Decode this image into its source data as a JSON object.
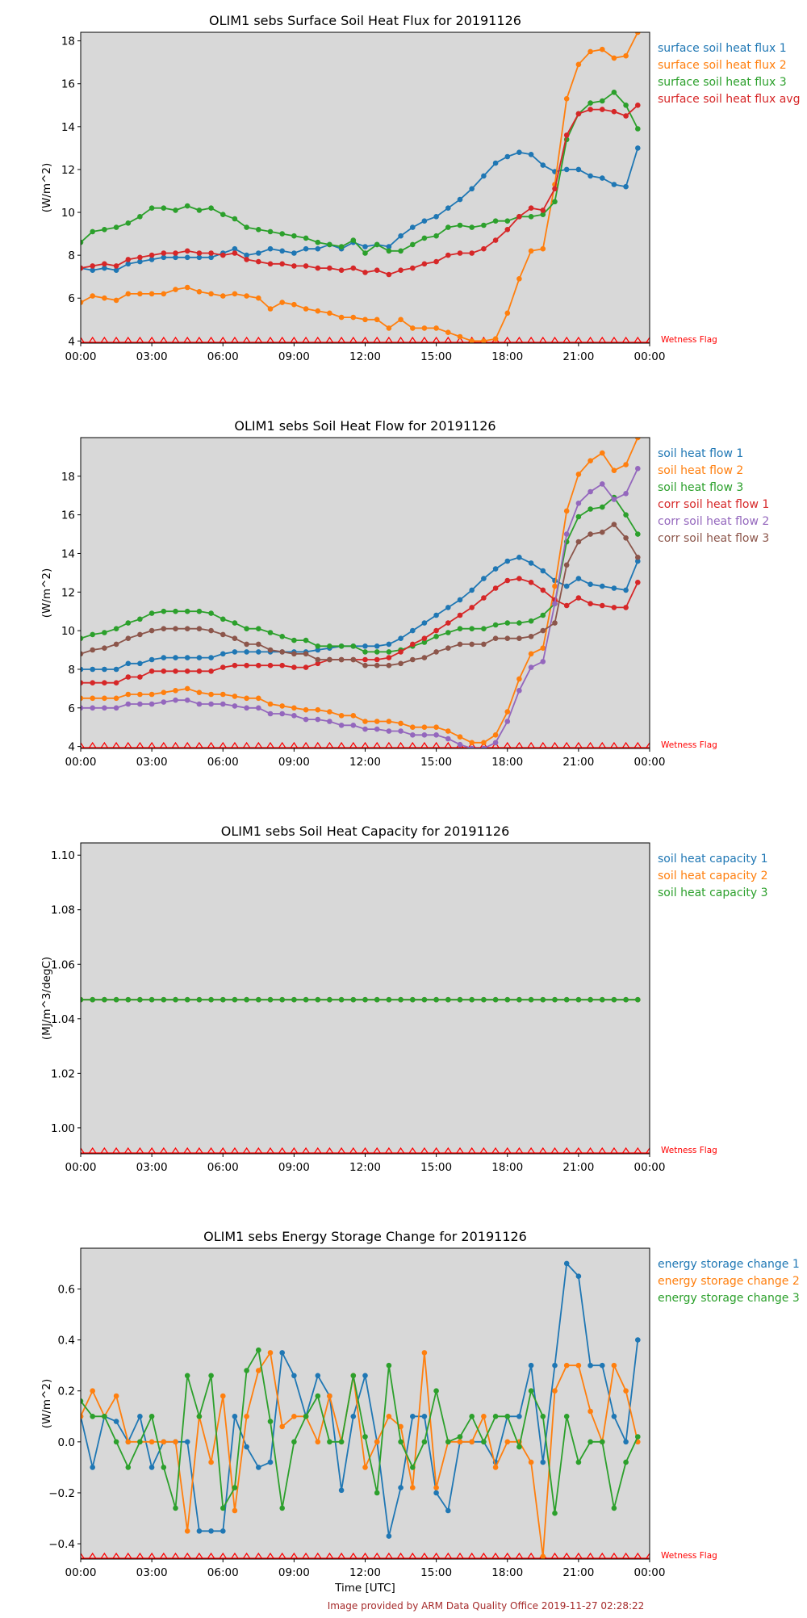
{
  "x_ticks": [
    "00:00",
    "03:00",
    "06:00",
    "09:00",
    "12:00",
    "15:00",
    "18:00",
    "21:00",
    "00:00"
  ],
  "wetness_flag_label": "Wetness Flag",
  "footer": "Image provided by ARM Data Quality Office 2019-11-27 02:28:22",
  "colors": {
    "c1": "#1f77b4",
    "c2": "#ff7f0e",
    "c3": "#2ca02c",
    "c4": "#d62728",
    "c5": "#9467bd",
    "c6": "#8c564b",
    "plot_bg": "#d8d8d8",
    "flag": "#ff0000",
    "footer": "#a52a2a"
  },
  "chart_data": [
    {
      "type": "line",
      "title": "OLIM1 sebs Surface Soil Heat Flux for 20191126",
      "ylabel": "(W/m^2)",
      "xlabel": "",
      "x_unit": "hours UTC",
      "xlim": [
        0,
        24
      ],
      "ylim": [
        3.9,
        18.4
      ],
      "yticks": [
        4,
        6,
        8,
        10,
        12,
        14,
        16,
        18
      ],
      "ytick_labels": [
        "4",
        "6",
        "8",
        "10",
        "12",
        "14",
        "16",
        "18"
      ],
      "legend": "right-outside",
      "series": [
        {
          "name": "surface soil heat flux 1",
          "color": "#1f77b4",
          "values": [
            7.4,
            7.3,
            7.4,
            7.3,
            7.6,
            7.7,
            7.8,
            7.9,
            7.9,
            7.9,
            7.9,
            7.9,
            8.1,
            8.3,
            8.0,
            8.1,
            8.3,
            8.2,
            8.1,
            8.3,
            8.3,
            8.5,
            8.3,
            8.6,
            8.4,
            8.5,
            8.4,
            8.9,
            9.3,
            9.6,
            9.8,
            10.2,
            10.6,
            11.1,
            11.7,
            12.3,
            12.6,
            12.8,
            12.7,
            12.2,
            11.9,
            12.0,
            12.0,
            11.7,
            11.6,
            11.3,
            11.2,
            13.0
          ]
        },
        {
          "name": "surface soil heat flux 2",
          "color": "#ff7f0e",
          "values": [
            5.8,
            6.1,
            6.0,
            5.9,
            6.2,
            6.2,
            6.2,
            6.2,
            6.4,
            6.5,
            6.3,
            6.2,
            6.1,
            6.2,
            6.1,
            6.0,
            5.5,
            5.8,
            5.7,
            5.5,
            5.4,
            5.3,
            5.1,
            5.1,
            5.0,
            5.0,
            4.6,
            5.0,
            4.6,
            4.6,
            4.6,
            4.4,
            4.2,
            4.0,
            4.0,
            4.1,
            5.3,
            6.9,
            8.2,
            8.3,
            11.3,
            15.3,
            16.9,
            17.5,
            17.6,
            17.2,
            17.3,
            18.4
          ]
        },
        {
          "name": "surface soil heat flux 3",
          "color": "#2ca02c",
          "values": [
            8.6,
            9.1,
            9.2,
            9.3,
            9.5,
            9.8,
            10.2,
            10.2,
            10.1,
            10.3,
            10.1,
            10.2,
            9.9,
            9.7,
            9.3,
            9.2,
            9.1,
            9.0,
            8.9,
            8.8,
            8.6,
            8.5,
            8.4,
            8.7,
            8.1,
            8.5,
            8.2,
            8.2,
            8.5,
            8.8,
            8.9,
            9.3,
            9.4,
            9.3,
            9.4,
            9.6,
            9.6,
            9.8,
            9.8,
            9.9,
            10.5,
            13.4,
            14.6,
            15.1,
            15.2,
            15.6,
            15.0,
            13.9
          ]
        },
        {
          "name": "surface soil heat flux avg",
          "color": "#d62728",
          "values": [
            7.4,
            7.5,
            7.6,
            7.5,
            7.8,
            7.9,
            8.0,
            8.1,
            8.1,
            8.2,
            8.1,
            8.1,
            8.0,
            8.1,
            7.8,
            7.7,
            7.6,
            7.6,
            7.5,
            7.5,
            7.4,
            7.4,
            7.3,
            7.4,
            7.2,
            7.3,
            7.1,
            7.3,
            7.4,
            7.6,
            7.7,
            8.0,
            8.1,
            8.1,
            8.3,
            8.7,
            9.2,
            9.8,
            10.2,
            10.1,
            11.1,
            13.6,
            14.6,
            14.8,
            14.8,
            14.7,
            14.5,
            15.0
          ]
        }
      ]
    },
    {
      "type": "line",
      "title": "OLIM1 sebs Soil Heat Flow for 20191126",
      "ylabel": "(W/m^2)",
      "xlabel": "",
      "x_unit": "hours UTC",
      "xlim": [
        0,
        24
      ],
      "ylim": [
        3.9,
        20.0
      ],
      "yticks": [
        4,
        6,
        8,
        10,
        12,
        14,
        16,
        18
      ],
      "ytick_labels": [
        "4",
        "6",
        "8",
        "10",
        "12",
        "14",
        "16",
        "18"
      ],
      "legend": "right-outside",
      "series": [
        {
          "name": "soil heat flow 1",
          "color": "#1f77b4",
          "values": [
            8.0,
            8.0,
            8.0,
            8.0,
            8.3,
            8.3,
            8.5,
            8.6,
            8.6,
            8.6,
            8.6,
            8.6,
            8.8,
            8.9,
            8.9,
            8.9,
            8.9,
            8.9,
            8.9,
            8.9,
            9.0,
            9.1,
            9.2,
            9.2,
            9.2,
            9.2,
            9.3,
            9.6,
            10.0,
            10.4,
            10.8,
            11.2,
            11.6,
            12.1,
            12.7,
            13.2,
            13.6,
            13.8,
            13.5,
            13.1,
            12.6,
            12.3,
            12.7,
            12.4,
            12.3,
            12.2,
            12.1,
            13.6
          ]
        },
        {
          "name": "soil heat flow 2",
          "color": "#ff7f0e",
          "values": [
            6.5,
            6.5,
            6.5,
            6.5,
            6.7,
            6.7,
            6.7,
            6.8,
            6.9,
            7.0,
            6.8,
            6.7,
            6.7,
            6.6,
            6.5,
            6.5,
            6.2,
            6.1,
            6.0,
            5.9,
            5.9,
            5.8,
            5.6,
            5.6,
            5.3,
            5.3,
            5.3,
            5.2,
            5.0,
            5.0,
            5.0,
            4.8,
            4.5,
            4.2,
            4.2,
            4.6,
            5.8,
            7.5,
            8.8,
            9.1,
            12.3,
            16.2,
            18.1,
            18.8,
            19.2,
            18.3,
            18.6,
            20.0
          ]
        },
        {
          "name": "soil heat flow 3",
          "color": "#2ca02c",
          "values": [
            9.6,
            9.8,
            9.9,
            10.1,
            10.4,
            10.6,
            10.9,
            11.0,
            11.0,
            11.0,
            11.0,
            10.9,
            10.6,
            10.4,
            10.1,
            10.1,
            9.9,
            9.7,
            9.5,
            9.5,
            9.2,
            9.2,
            9.2,
            9.2,
            8.9,
            8.9,
            8.9,
            9.0,
            9.2,
            9.4,
            9.7,
            9.9,
            10.1,
            10.1,
            10.1,
            10.3,
            10.4,
            10.4,
            10.5,
            10.8,
            11.4,
            14.6,
            15.9,
            16.3,
            16.4,
            16.9,
            16.0,
            15.0
          ]
        },
        {
          "name": "corr soil heat flow 1",
          "color": "#d62728",
          "values": [
            7.3,
            7.3,
            7.3,
            7.3,
            7.6,
            7.6,
            7.9,
            7.9,
            7.9,
            7.9,
            7.9,
            7.9,
            8.1,
            8.2,
            8.2,
            8.2,
            8.2,
            8.2,
            8.1,
            8.1,
            8.3,
            8.5,
            8.5,
            8.5,
            8.5,
            8.5,
            8.6,
            8.9,
            9.3,
            9.6,
            10.0,
            10.4,
            10.8,
            11.2,
            11.7,
            12.2,
            12.6,
            12.7,
            12.5,
            12.1,
            11.6,
            11.3,
            11.7,
            11.4,
            11.3,
            11.2,
            11.2,
            12.5
          ]
        },
        {
          "name": "corr soil heat flow 2",
          "color": "#9467bd",
          "values": [
            6.0,
            6.0,
            6.0,
            6.0,
            6.2,
            6.2,
            6.2,
            6.3,
            6.4,
            6.4,
            6.2,
            6.2,
            6.2,
            6.1,
            6.0,
            6.0,
            5.7,
            5.7,
            5.6,
            5.4,
            5.4,
            5.3,
            5.1,
            5.1,
            4.9,
            4.9,
            4.8,
            4.8,
            4.6,
            4.6,
            4.6,
            4.4,
            4.1,
            3.9,
            3.9,
            4.2,
            5.3,
            6.9,
            8.1,
            8.4,
            11.4,
            15.0,
            16.6,
            17.2,
            17.6,
            16.8,
            17.1,
            18.4
          ]
        },
        {
          "name": "corr soil heat flow 3",
          "color": "#8c564b",
          "values": [
            8.8,
            9.0,
            9.1,
            9.3,
            9.6,
            9.8,
            10.0,
            10.1,
            10.1,
            10.1,
            10.1,
            10.0,
            9.8,
            9.6,
            9.3,
            9.3,
            9.0,
            8.9,
            8.8,
            8.8,
            8.5,
            8.5,
            8.5,
            8.5,
            8.2,
            8.2,
            8.2,
            8.3,
            8.5,
            8.6,
            8.9,
            9.1,
            9.3,
            9.3,
            9.3,
            9.6,
            9.6,
            9.6,
            9.7,
            10.0,
            10.4,
            13.4,
            14.6,
            15.0,
            15.1,
            15.5,
            14.8,
            13.8
          ]
        }
      ]
    },
    {
      "type": "line",
      "title": "OLIM1 sebs Soil Heat Capacity for 20191126",
      "ylabel": "(MJ/m^3/degC)",
      "xlabel": "",
      "x_unit": "hours UTC",
      "xlim": [
        0,
        24
      ],
      "ylim": [
        0.9905,
        1.1045
      ],
      "yticks": [
        1.0,
        1.02,
        1.04,
        1.06,
        1.08,
        1.1
      ],
      "ytick_labels": [
        "1.00",
        "1.02",
        "1.04",
        "1.06",
        "1.08",
        "1.10"
      ],
      "legend": "right-outside",
      "series": [
        {
          "name": "soil heat capacity 1",
          "color": "#1f77b4",
          "values": [
            1.047,
            1.047,
            1.047,
            1.047,
            1.047,
            1.047,
            1.047,
            1.047,
            1.047,
            1.047,
            1.047,
            1.047,
            1.047,
            1.047,
            1.047,
            1.047,
            1.047,
            1.047,
            1.047,
            1.047,
            1.047,
            1.047,
            1.047,
            1.047,
            1.047,
            1.047,
            1.047,
            1.047,
            1.047,
            1.047,
            1.047,
            1.047,
            1.047,
            1.047,
            1.047,
            1.047,
            1.047,
            1.047,
            1.047,
            1.047,
            1.047,
            1.047,
            1.047,
            1.047,
            1.047,
            1.047,
            1.047,
            1.047
          ]
        },
        {
          "name": "soil heat capacity 2",
          "color": "#ff7f0e",
          "values": [
            1.047,
            1.047,
            1.047,
            1.047,
            1.047,
            1.047,
            1.047,
            1.047,
            1.047,
            1.047,
            1.047,
            1.047,
            1.047,
            1.047,
            1.047,
            1.047,
            1.047,
            1.047,
            1.047,
            1.047,
            1.047,
            1.047,
            1.047,
            1.047,
            1.047,
            1.047,
            1.047,
            1.047,
            1.047,
            1.047,
            1.047,
            1.047,
            1.047,
            1.047,
            1.047,
            1.047,
            1.047,
            1.047,
            1.047,
            1.047,
            1.047,
            1.047,
            1.047,
            1.047,
            1.047,
            1.047,
            1.047,
            1.047
          ]
        },
        {
          "name": "soil heat capacity 3",
          "color": "#2ca02c",
          "values": [
            1.047,
            1.047,
            1.047,
            1.047,
            1.047,
            1.047,
            1.047,
            1.047,
            1.047,
            1.047,
            1.047,
            1.047,
            1.047,
            1.047,
            1.047,
            1.047,
            1.047,
            1.047,
            1.047,
            1.047,
            1.047,
            1.047,
            1.047,
            1.047,
            1.047,
            1.047,
            1.047,
            1.047,
            1.047,
            1.047,
            1.047,
            1.047,
            1.047,
            1.047,
            1.047,
            1.047,
            1.047,
            1.047,
            1.047,
            1.047,
            1.047,
            1.047,
            1.047,
            1.047,
            1.047,
            1.047,
            1.047,
            1.047
          ]
        }
      ]
    },
    {
      "type": "line",
      "title": "OLIM1 sebs Energy Storage Change for 20191126",
      "ylabel": "(W/m^2)",
      "xlabel": "Time [UTC]",
      "x_unit": "hours UTC",
      "xlim": [
        0,
        24
      ],
      "ylim": [
        -0.46,
        0.76
      ],
      "yticks": [
        -0.4,
        -0.2,
        0.0,
        0.2,
        0.4,
        0.6
      ],
      "ytick_labels": [
        "−0.4",
        "−0.2",
        "0.0",
        "0.2",
        "0.4",
        "0.6"
      ],
      "legend": "right-outside",
      "series": [
        {
          "name": "energy storage change 1",
          "color": "#1f77b4",
          "values": [
            0.1,
            -0.1,
            0.1,
            0.08,
            0.0,
            0.1,
            -0.1,
            0.0,
            0.0,
            0.0,
            -0.35,
            -0.35,
            -0.35,
            0.1,
            -0.02,
            -0.1,
            -0.08,
            0.35,
            0.26,
            0.1,
            0.26,
            0.18,
            -0.19,
            0.1,
            0.26,
            0.0,
            -0.37,
            -0.18,
            0.1,
            0.1,
            -0.2,
            -0.27,
            0.0,
            0.0,
            0.0,
            -0.08,
            0.1,
            0.1,
            0.3,
            -0.08,
            0.3,
            0.7,
            0.65,
            0.3,
            0.3,
            0.1,
            0.0,
            0.4
          ]
        },
        {
          "name": "energy storage change 2",
          "color": "#ff7f0e",
          "values": [
            0.1,
            0.2,
            0.1,
            0.18,
            0.0,
            0.0,
            0.0,
            0.0,
            0.0,
            -0.35,
            0.1,
            -0.08,
            0.18,
            -0.27,
            0.1,
            0.28,
            0.35,
            0.06,
            0.1,
            0.1,
            0.0,
            0.18,
            0.0,
            0.26,
            -0.1,
            0.0,
            0.1,
            0.06,
            -0.18,
            0.35,
            -0.18,
            0.0,
            0.0,
            0.0,
            0.1,
            -0.1,
            0.0,
            0.0,
            -0.08,
            -0.45,
            0.2,
            0.3,
            0.3,
            0.12,
            0.0,
            0.3,
            0.2,
            0.0
          ]
        },
        {
          "name": "energy storage change 3",
          "color": "#2ca02c",
          "values": [
            0.16,
            0.1,
            0.1,
            0.0,
            -0.1,
            0.0,
            0.1,
            -0.1,
            -0.26,
            0.26,
            0.1,
            0.26,
            -0.26,
            -0.18,
            0.28,
            0.36,
            0.08,
            -0.26,
            0.0,
            0.1,
            0.18,
            0.0,
            0.0,
            0.26,
            0.02,
            -0.2,
            0.3,
            0.0,
            -0.1,
            0.0,
            0.2,
            0.0,
            0.02,
            0.1,
            0.0,
            0.1,
            0.1,
            -0.02,
            0.2,
            0.1,
            -0.28,
            0.1,
            -0.08,
            0.0,
            0.0,
            -0.26,
            -0.08,
            0.02
          ]
        }
      ]
    }
  ]
}
